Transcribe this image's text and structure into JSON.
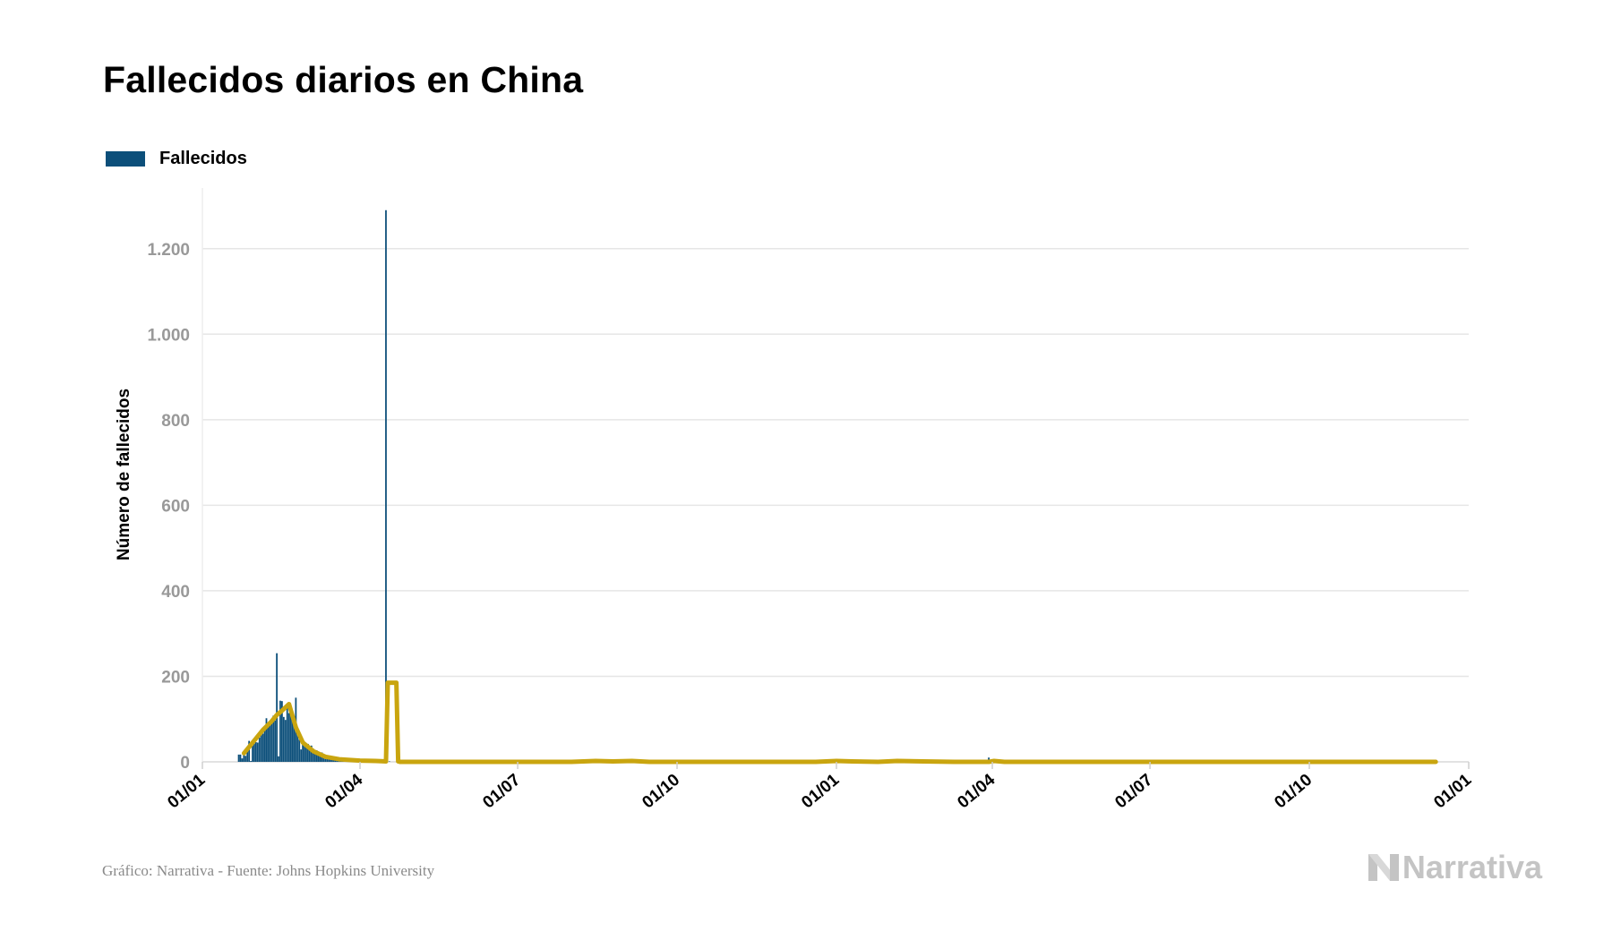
{
  "title": "Fallecidos diarios en China",
  "footer": "Gráfico: Narrativa - Fuente: Johns Hopkins University",
  "brand": "Narrativa",
  "colors": {
    "bars": "#0c4f7a",
    "line": "#c9a50f",
    "grid": "#e6e6e6",
    "axis_tick": "#999999"
  },
  "chart_data": {
    "type": "bar",
    "title": "Fallecidos diarios en China",
    "xlabel": "",
    "ylabel": "Número de fallecidos",
    "ylim": [
      0,
      1300
    ],
    "yticks": [
      0,
      200,
      400,
      600,
      800,
      1000,
      1200
    ],
    "ytick_labels": [
      "0",
      "200",
      "400",
      "600",
      "800",
      "1.000",
      "1.200"
    ],
    "xlim": [
      "2020-01-01",
      "2022-01-01"
    ],
    "xticks": [
      "2020-01-01",
      "2020-04-01",
      "2020-07-01",
      "2020-10-01",
      "2021-01-01",
      "2021-04-01",
      "2021-07-01",
      "2021-10-01",
      "2022-01-01"
    ],
    "xtick_labels": [
      "01/01",
      "01/04",
      "01/07",
      "01/10",
      "01/01",
      "01/04",
      "01/07",
      "01/10",
      "01/01"
    ],
    "grid": true,
    "legend_position": "top-left",
    "series": [
      {
        "name": "Fallecidos",
        "type": "bar",
        "x": [
          "2020-01-22",
          "2020-01-23",
          "2020-01-24",
          "2020-01-25",
          "2020-01-26",
          "2020-01-27",
          "2020-01-28",
          "2020-01-29",
          "2020-01-30",
          "2020-01-31",
          "2020-02-01",
          "2020-02-02",
          "2020-02-03",
          "2020-02-04",
          "2020-02-05",
          "2020-02-06",
          "2020-02-07",
          "2020-02-08",
          "2020-02-09",
          "2020-02-10",
          "2020-02-11",
          "2020-02-12",
          "2020-02-13",
          "2020-02-14",
          "2020-02-15",
          "2020-02-16",
          "2020-02-17",
          "2020-02-18",
          "2020-02-19",
          "2020-02-20",
          "2020-02-21",
          "2020-02-22",
          "2020-02-23",
          "2020-02-24",
          "2020-02-25",
          "2020-02-26",
          "2020-02-27",
          "2020-02-28",
          "2020-02-29",
          "2020-03-01",
          "2020-03-02",
          "2020-03-03",
          "2020-03-04",
          "2020-03-05",
          "2020-03-06",
          "2020-03-07",
          "2020-03-08",
          "2020-03-09",
          "2020-03-10",
          "2020-03-11",
          "2020-03-12",
          "2020-03-13",
          "2020-03-14",
          "2020-03-15",
          "2020-03-16",
          "2020-03-17",
          "2020-03-18",
          "2020-03-19",
          "2020-03-20",
          "2020-03-21",
          "2020-03-22",
          "2020-03-23",
          "2020-03-24",
          "2020-03-25",
          "2020-03-26",
          "2020-03-27",
          "2020-03-28",
          "2020-03-29",
          "2020-03-30",
          "2020-03-31",
          "2020-04-01",
          "2020-04-02",
          "2020-04-03",
          "2020-04-04",
          "2020-04-05",
          "2020-04-06",
          "2020-04-07",
          "2020-04-08",
          "2020-04-09",
          "2020-04-10",
          "2020-04-11",
          "2020-04-12",
          "2020-04-13",
          "2020-04-14",
          "2020-04-15",
          "2020-04-16",
          "2020-04-17",
          "2020-04-18",
          "2020-04-19",
          "2020-04-20",
          "2021-03-30"
        ],
        "values": [
          17,
          17,
          8,
          16,
          14,
          26,
          49,
          2,
          38,
          43,
          46,
          45,
          57,
          65,
          66,
          73,
          102,
          86,
          89,
          97,
          108,
          97,
          254,
          13,
          143,
          142,
          105,
          98,
          136,
          114,
          118,
          109,
          97,
          150,
          71,
          52,
          29,
          44,
          47,
          35,
          42,
          31,
          38,
          31,
          28,
          27,
          22,
          17,
          22,
          11,
          7,
          13,
          10,
          14,
          13,
          11,
          8,
          3,
          7,
          6,
          9,
          7,
          4,
          6,
          5,
          3,
          5,
          4,
          1,
          7,
          6,
          4,
          4,
          3,
          1,
          2,
          1,
          2,
          1,
          3,
          1,
          1,
          2,
          1,
          2,
          1290,
          0,
          1,
          0,
          0,
          10
        ]
      },
      {
        "name": "",
        "type": "line",
        "x": [
          "2020-01-25",
          "2020-02-01",
          "2020-02-05",
          "2020-02-10",
          "2020-02-13",
          "2020-02-16",
          "2020-02-20",
          "2020-02-24",
          "2020-02-28",
          "2020-03-05",
          "2020-03-12",
          "2020-03-20",
          "2020-04-01",
          "2020-04-10",
          "2020-04-16",
          "2020-04-17",
          "2020-04-22",
          "2020-04-23",
          "2020-04-24",
          "2020-06-01",
          "2020-07-01",
          "2020-08-01",
          "2020-08-15",
          "2020-08-25",
          "2020-09-05",
          "2020-09-15",
          "2020-10-01",
          "2020-11-01",
          "2020-12-01",
          "2020-12-20",
          "2021-01-01",
          "2021-01-10",
          "2021-01-25",
          "2021-02-05",
          "2021-02-20",
          "2021-03-10",
          "2021-03-30",
          "2021-04-02",
          "2021-04-08",
          "2021-05-01",
          "2021-07-01",
          "2021-10-01",
          "2021-12-13"
        ],
        "values": [
          20,
          55,
          75,
          95,
          110,
          120,
          135,
          80,
          45,
          25,
          12,
          6,
          3,
          2,
          1,
          185,
          185,
          1,
          0,
          0,
          0,
          0,
          2,
          1,
          2,
          0,
          0,
          0,
          0,
          0,
          2,
          1,
          0,
          2,
          1,
          0,
          0,
          2,
          0,
          0,
          0,
          0,
          0
        ]
      }
    ]
  }
}
